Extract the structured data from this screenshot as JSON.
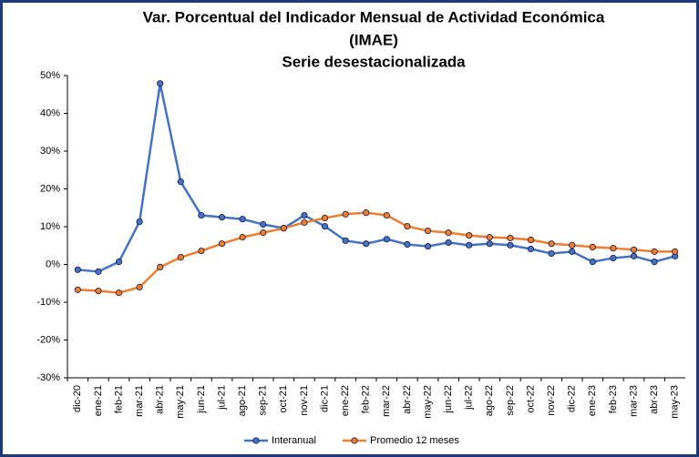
{
  "chart_data": {
    "type": "line",
    "title": [
      "Var. Porcentual del Indicador Mensual de Actividad Económica",
      "(IMAE)",
      "Serie desestacionalizada"
    ],
    "categories": [
      "dic-20",
      "ene-21",
      "feb-21",
      "mar-21",
      "abr-21",
      "may-21",
      "jun-21",
      "jul-21",
      "ago-21",
      "sep-21",
      "oct-21",
      "nov-21",
      "dic-21",
      "ene-22",
      "feb-22",
      "mar-22",
      "abr-22",
      "may-22",
      "jun-22",
      "jul-22",
      "ago-22",
      "sep-22",
      "oct-22",
      "nov-22",
      "dic-22",
      "ene-23",
      "feb-23",
      "mar-23",
      "abr-23",
      "may-23"
    ],
    "series": [
      {
        "name": "Interanual",
        "color": "#4472c4",
        "values": [
          -1.4,
          -1.9,
          0.7,
          11.3,
          47.9,
          21.9,
          13.0,
          12.5,
          12.0,
          10.6,
          9.6,
          13.0,
          10.1,
          6.3,
          5.5,
          6.7,
          5.3,
          4.8,
          5.8,
          5.1,
          5.5,
          5.1,
          4.1,
          2.9,
          3.4,
          0.7,
          1.7,
          2.2,
          0.7,
          2.2
        ]
      },
      {
        "name": "Promedio 12 meses",
        "color": "#ed7d31",
        "values": [
          -6.7,
          -7.0,
          -7.5,
          -6.0,
          -0.7,
          1.9,
          3.6,
          5.5,
          7.2,
          8.4,
          9.6,
          11.1,
          12.3,
          13.3,
          13.7,
          13.0,
          10.1,
          8.9,
          8.4,
          7.7,
          7.2,
          7.0,
          6.5,
          5.5,
          5.1,
          4.6,
          4.3,
          3.9,
          3.4,
          3.4
        ]
      }
    ],
    "ylim": [
      -30,
      50
    ],
    "yticks": [
      {
        "value": -30,
        "label": "-30%"
      },
      {
        "value": -20,
        "label": "-20%"
      },
      {
        "value": -10,
        "label": "-10%"
      },
      {
        "value": 0,
        "label": "0%"
      },
      {
        "value": 10,
        "label": "10%"
      },
      {
        "value": 20,
        "label": "20%"
      },
      {
        "value": 30,
        "label": "30%"
      },
      {
        "value": 40,
        "label": "40%"
      },
      {
        "value": 50,
        "label": "50%"
      }
    ],
    "grid": false,
    "legend": "bottom"
  }
}
